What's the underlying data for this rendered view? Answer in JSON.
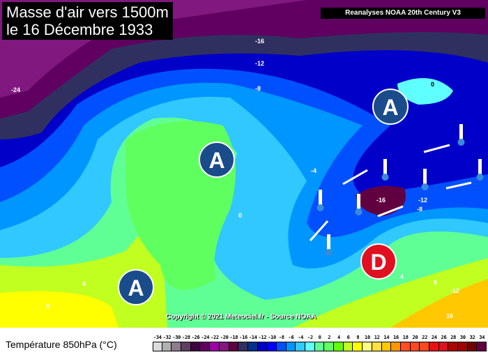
{
  "title_lines": [
    "Masse d'air vers 1500m",
    "le 16 Décembre 1933"
  ],
  "source": "Reanalyses NOAA 20th Century V3",
  "copyright": "Copyright © 2021 Meteociel.fr - Source NOAA",
  "legend": {
    "title": "Température 850hPa (°C)",
    "values": [
      "-34",
      "-32",
      "-30",
      "-28",
      "-26",
      "-24",
      "-22",
      "-20",
      "-18",
      "-16",
      "-14",
      "-12",
      "-10",
      "-8",
      "-6",
      "-4",
      "-2",
      "0",
      "2",
      "4",
      "6",
      "8",
      "10",
      "12",
      "14",
      "16",
      "18",
      "20",
      "22",
      "24",
      "26",
      "28",
      "30",
      "32",
      "34"
    ],
    "colors": [
      "#dcdcdc",
      "#b0b0b0",
      "#8c7c8c",
      "#604060",
      "#400040",
      "#600060",
      "#a000a8",
      "#801880",
      "#600040",
      "#303060",
      "#003090",
      "#0000c8",
      "#0000ff",
      "#0050ff",
      "#0096ff",
      "#30c8ff",
      "#60ffff",
      "#60ff96",
      "#60ff60",
      "#60ff00",
      "#c0ff20",
      "#ffff00",
      "#ffff80",
      "#ffe040",
      "#ffc800",
      "#ff9600",
      "#ff5020",
      "#ff4820",
      "#ff4820",
      "#e81010",
      "#e01020",
      "#b00000",
      "#a00000",
      "#700000",
      "#600040"
    ]
  },
  "contour_labels": [
    "-24",
    "-16",
    "-12",
    "-8",
    "-4",
    "0",
    "4",
    "8",
    "-16",
    "-12",
    "-8",
    "4",
    "8",
    "-12",
    "16",
    "0"
  ],
  "pressure_centers": {
    "high": "A",
    "low": "D",
    "high_color": "#1a4c8c",
    "low_color": "#e01020"
  }
}
